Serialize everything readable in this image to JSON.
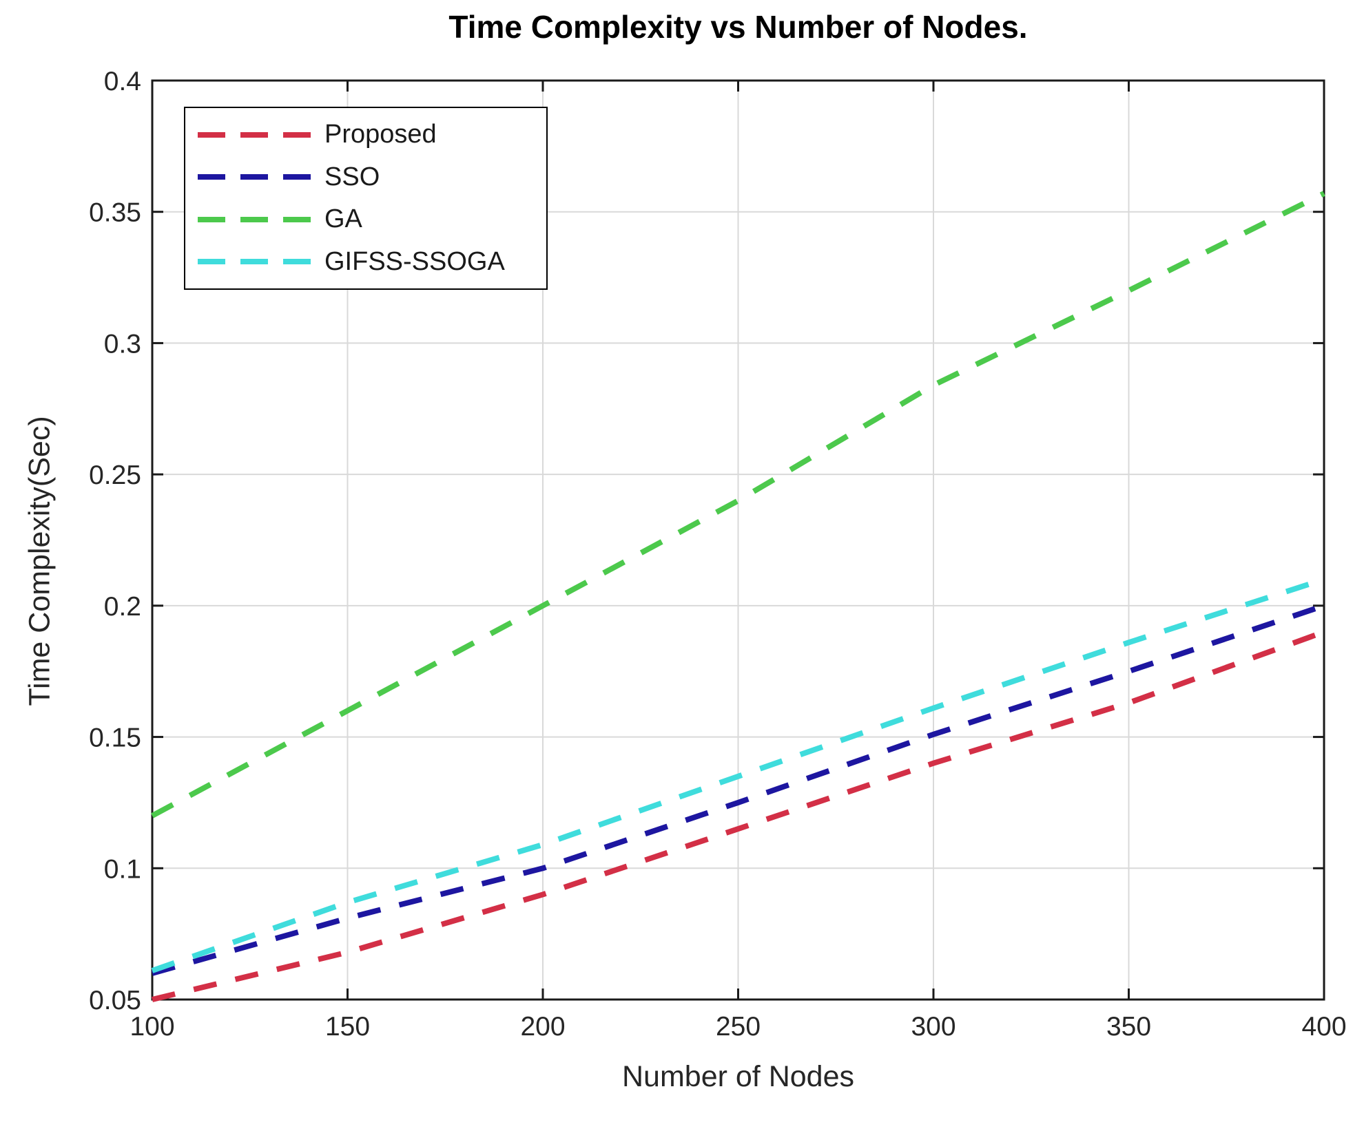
{
  "chart_data": {
    "type": "line",
    "title": "Time Complexity vs Number of Nodes.",
    "xlabel": "Number of Nodes",
    "ylabel": "Time Complexity(Sec)",
    "line_style": "dashed",
    "grid": true,
    "legend_position": "top-left-inside",
    "xlim": [
      100,
      400
    ],
    "ylim": [
      0.05,
      0.4
    ],
    "xticks": [
      100,
      150,
      200,
      250,
      300,
      350,
      400
    ],
    "xtick_labels": [
      "100",
      "150",
      "200",
      "250",
      "300",
      "350",
      "400"
    ],
    "yticks": [
      0.05,
      0.1,
      0.15,
      0.2,
      0.25,
      0.3,
      0.35,
      0.4
    ],
    "ytick_labels": [
      "0.05",
      "0.1",
      "0.15",
      "0.2",
      "0.25",
      "0.3",
      "0.35",
      "0.4"
    ],
    "x": [
      100,
      150,
      200,
      250,
      300,
      350,
      400
    ],
    "series": [
      {
        "name": "Proposed",
        "color": "#d32f46",
        "values": [
          0.05,
          0.068,
          0.09,
          0.115,
          0.14,
          0.163,
          0.19
        ]
      },
      {
        "name": "SSO",
        "color": "#1d16a0",
        "values": [
          0.06,
          0.081,
          0.1,
          0.125,
          0.151,
          0.175,
          0.2
        ]
      },
      {
        "name": "GA",
        "color": "#4cc94c",
        "values": [
          0.12,
          0.16,
          0.2,
          0.24,
          0.284,
          0.32,
          0.357
        ]
      },
      {
        "name": "GIFSS-SSOGA",
        "color": "#3fdcdc",
        "values": [
          0.061,
          0.087,
          0.109,
          0.135,
          0.161,
          0.186,
          0.21
        ]
      }
    ]
  },
  "colors": {
    "grid": "#d9d9d9",
    "axis": "#1a1a1a",
    "tick_label": "#262626",
    "background": "#ffffff"
  }
}
